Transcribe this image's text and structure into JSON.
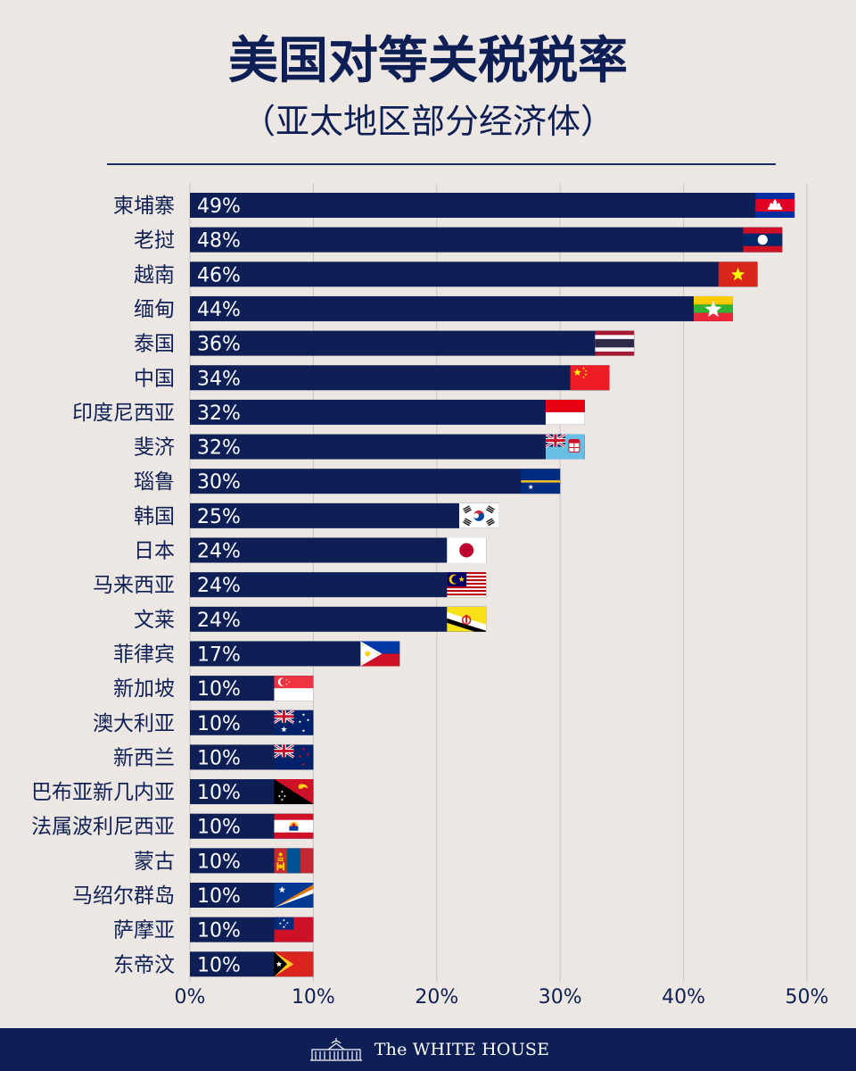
{
  "title": "美国对等关税税率",
  "subtitle": "（亚太地区部分经济体）",
  "footer": {
    "brand": "The WHITE HOUSE",
    "logo_icon": "white-house-icon"
  },
  "colors": {
    "background": "#ece7e2",
    "bar": "#0d1f54",
    "text": "#0d1f54",
    "grid": "#c9c5c4"
  },
  "chart_data": {
    "type": "bar",
    "orientation": "horizontal",
    "categories": [
      "柬埔寨",
      "老挝",
      "越南",
      "缅甸",
      "泰国",
      "中国",
      "印度尼西亚",
      "斐济",
      "瑙鲁",
      "韩国",
      "日本",
      "马来西亚",
      "文莱",
      "菲律宾",
      "新加坡",
      "澳大利亚",
      "新西兰",
      "巴布亚新几内亚",
      "法属波利尼西亚",
      "蒙古",
      "马绍尔群岛",
      "萨摩亚",
      "东帝汶"
    ],
    "values": [
      49,
      48,
      46,
      44,
      36,
      34,
      32,
      32,
      30,
      25,
      24,
      24,
      24,
      17,
      10,
      10,
      10,
      10,
      10,
      10,
      10,
      10,
      10
    ],
    "value_labels": [
      "49%",
      "48%",
      "46%",
      "44%",
      "36%",
      "34%",
      "32%",
      "32%",
      "30%",
      "25%",
      "24%",
      "24%",
      "24%",
      "17%",
      "10%",
      "10%",
      "10%",
      "10%",
      "10%",
      "10%",
      "10%",
      "10%",
      "10%"
    ],
    "flag_icons": [
      "cambodia-flag-icon",
      "laos-flag-icon",
      "vietnam-flag-icon",
      "myanmar-flag-icon",
      "thailand-flag-icon",
      "china-flag-icon",
      "indonesia-flag-icon",
      "fiji-flag-icon",
      "nauru-flag-icon",
      "south-korea-flag-icon",
      "japan-flag-icon",
      "malaysia-flag-icon",
      "brunei-flag-icon",
      "philippines-flag-icon",
      "singapore-flag-icon",
      "australia-flag-icon",
      "new-zealand-flag-icon",
      "papua-new-guinea-flag-icon",
      "french-polynesia-flag-icon",
      "mongolia-flag-icon",
      "marshall-islands-flag-icon",
      "samoa-flag-icon",
      "timor-leste-flag-icon"
    ],
    "xticks": [
      "0%",
      "10%",
      "20%",
      "30%",
      "40%",
      "50%"
    ],
    "xtick_values": [
      0,
      10,
      20,
      30,
      40,
      50
    ],
    "xlim": [
      0,
      50
    ],
    "grid": "vertical",
    "legend": "none"
  }
}
